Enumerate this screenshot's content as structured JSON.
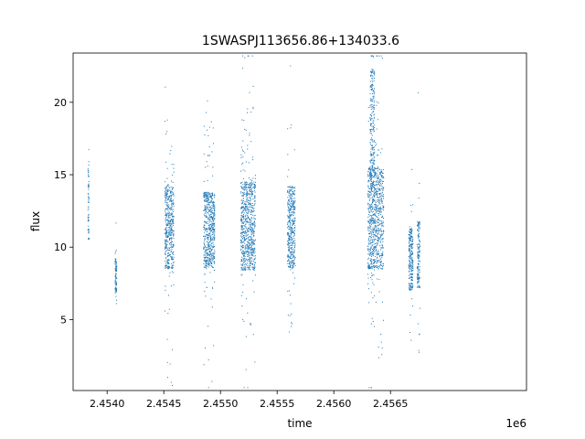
{
  "chart_data": {
    "type": "scatter",
    "title": "1SWASPJ113656.86+134033.6",
    "xlabel": "time",
    "ylabel": "flux",
    "x_offset_label": "1e6",
    "x_multiplier": 1000000,
    "xlim": [
      2453700,
      2457700
    ],
    "ylim": [
      0.1,
      23.4
    ],
    "xticks": [
      2.454,
      2.4545,
      2.455,
      2.4555,
      2.456,
      2.4565
    ],
    "xtick_labels": [
      "2.4540",
      "2.4545",
      "2.4550",
      "2.4555",
      "2.4560",
      "2.4565"
    ],
    "yticks": [
      5,
      10,
      15,
      20
    ],
    "ytick_labels": [
      "5",
      "10",
      "15",
      "20"
    ],
    "grid": false,
    "marker_color": "#1f77b4",
    "clusters": [
      {
        "x_start": 2453830,
        "x_end": 2453840,
        "y_center": 13.5,
        "y_low": 10.5,
        "y_high": 16.0
      },
      {
        "x_start": 2454070,
        "x_end": 2454085,
        "y_center": 8.0,
        "y_low": 6.9,
        "y_high": 9.2
      },
      {
        "x_start": 2454510,
        "x_end": 2454590,
        "y_center": 11.2,
        "y_low": 8.5,
        "y_high": 14.2
      },
      {
        "x_start": 2454850,
        "x_end": 2454950,
        "y_center": 11.2,
        "y_low": 8.6,
        "y_high": 13.8
      },
      {
        "x_start": 2455180,
        "x_end": 2455310,
        "y_center": 11.3,
        "y_low": 8.4,
        "y_high": 14.5
      },
      {
        "x_start": 2455590,
        "x_end": 2455660,
        "y_center": 11.2,
        "y_low": 8.5,
        "y_high": 14.2
      },
      {
        "x_start": 2456300,
        "x_end": 2456440,
        "y_center": 11.7,
        "y_low": 8.5,
        "y_high": 15.5
      },
      {
        "x_start": 2456320,
        "x_end": 2456360,
        "y_center": 17.5,
        "y_low": 14.0,
        "y_high": 22.3
      },
      {
        "x_start": 2456660,
        "x_end": 2456700,
        "y_center": 9.2,
        "y_low": 7.0,
        "y_high": 11.3
      },
      {
        "x_start": 2456735,
        "x_end": 2456760,
        "y_center": 9.4,
        "y_low": 7.2,
        "y_high": 11.8
      }
    ]
  }
}
